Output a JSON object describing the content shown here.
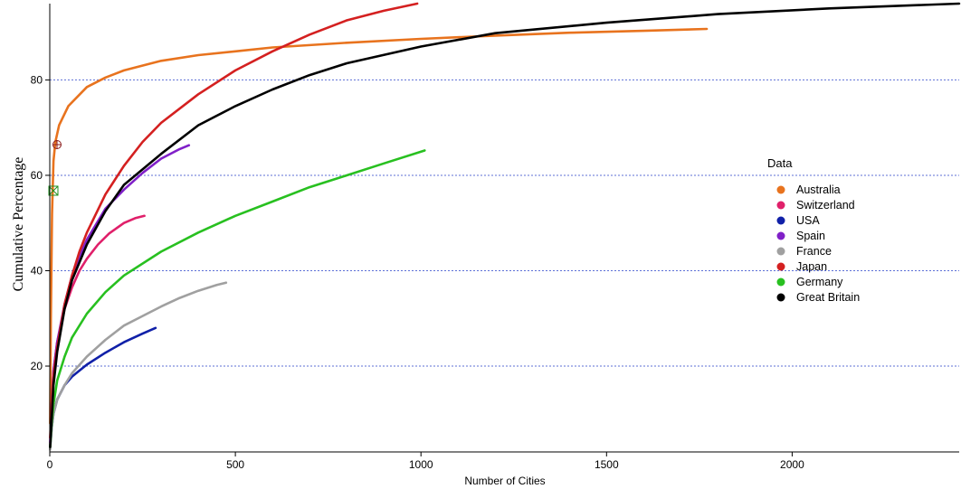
{
  "chart_data": {
    "type": "line",
    "xlabel": "Number of Cities",
    "ylabel": "Cumulative Percentage",
    "xlim": [
      0,
      2450
    ],
    "ylim": [
      2,
      96
    ],
    "x_ticks": [
      0,
      500,
      1000,
      1500,
      2000
    ],
    "y_ticks": [
      20,
      40,
      60,
      80
    ],
    "grid": "horizontal dotted",
    "legend": {
      "title": "Data",
      "placement": "right"
    },
    "series": [
      {
        "name": "Australia",
        "color": "#e8731e",
        "points": [
          [
            1,
            8
          ],
          [
            3,
            30
          ],
          [
            6,
            52
          ],
          [
            10,
            63
          ],
          [
            15,
            67
          ],
          [
            25,
            70.5
          ],
          [
            50,
            74.5
          ],
          [
            100,
            78.5
          ],
          [
            150,
            80.5
          ],
          [
            200,
            82
          ],
          [
            300,
            84
          ],
          [
            400,
            85.2
          ],
          [
            500,
            86
          ],
          [
            600,
            86.8
          ],
          [
            800,
            87.8
          ],
          [
            1000,
            88.6
          ],
          [
            1200,
            89.3
          ],
          [
            1400,
            89.9
          ],
          [
            1600,
            90.3
          ],
          [
            1770,
            90.7
          ]
        ]
      },
      {
        "name": "Switzerland",
        "color": "#e0206a",
        "points": [
          [
            1,
            3
          ],
          [
            5,
            12
          ],
          [
            10,
            19
          ],
          [
            20,
            25
          ],
          [
            40,
            32
          ],
          [
            60,
            36.5
          ],
          [
            80,
            40
          ],
          [
            100,
            42.5
          ],
          [
            130,
            45.5
          ],
          [
            160,
            47.8
          ],
          [
            200,
            50
          ],
          [
            230,
            51
          ],
          [
            255,
            51.5
          ]
        ]
      },
      {
        "name": "USA",
        "color": "#1020a8",
        "points": [
          [
            1,
            3
          ],
          [
            5,
            7
          ],
          [
            10,
            10
          ],
          [
            20,
            13
          ],
          [
            40,
            16
          ],
          [
            60,
            17.8
          ],
          [
            100,
            20.3
          ],
          [
            150,
            22.8
          ],
          [
            200,
            25
          ],
          [
            250,
            26.8
          ],
          [
            285,
            28
          ]
        ]
      },
      {
        "name": "Spain",
        "color": "#8020c8",
        "points": [
          [
            1,
            4
          ],
          [
            5,
            12
          ],
          [
            10,
            19
          ],
          [
            20,
            25
          ],
          [
            40,
            33
          ],
          [
            60,
            39
          ],
          [
            80,
            43
          ],
          [
            100,
            46.5
          ],
          [
            150,
            53
          ],
          [
            200,
            57
          ],
          [
            250,
            60.5
          ],
          [
            300,
            63.5
          ],
          [
            350,
            65.5
          ],
          [
            375,
            66.3
          ]
        ]
      },
      {
        "name": "France",
        "color": "#a0a0a0",
        "points": [
          [
            1,
            2.5
          ],
          [
            5,
            7
          ],
          [
            10,
            10
          ],
          [
            20,
            13
          ],
          [
            40,
            16
          ],
          [
            60,
            18.5
          ],
          [
            100,
            22
          ],
          [
            150,
            25.5
          ],
          [
            200,
            28.5
          ],
          [
            250,
            30.5
          ],
          [
            300,
            32.5
          ],
          [
            350,
            34.3
          ],
          [
            400,
            35.8
          ],
          [
            450,
            37
          ],
          [
            475,
            37.5
          ]
        ]
      },
      {
        "name": "Japan",
        "color": "#d42020",
        "points": [
          [
            1,
            5
          ],
          [
            5,
            12
          ],
          [
            10,
            18
          ],
          [
            20,
            24
          ],
          [
            40,
            33
          ],
          [
            60,
            39
          ],
          [
            80,
            44
          ],
          [
            100,
            48
          ],
          [
            150,
            56
          ],
          [
            200,
            62
          ],
          [
            250,
            67
          ],
          [
            300,
            71
          ],
          [
            400,
            77
          ],
          [
            500,
            82
          ],
          [
            600,
            86
          ],
          [
            700,
            89.5
          ],
          [
            800,
            92.5
          ],
          [
            900,
            94.5
          ],
          [
            990,
            96
          ]
        ]
      },
      {
        "name": "Germany",
        "color": "#28c020",
        "points": [
          [
            1,
            3
          ],
          [
            5,
            8
          ],
          [
            10,
            12
          ],
          [
            20,
            17
          ],
          [
            40,
            22
          ],
          [
            60,
            26
          ],
          [
            100,
            31
          ],
          [
            150,
            35.5
          ],
          [
            200,
            39
          ],
          [
            300,
            44
          ],
          [
            400,
            48
          ],
          [
            500,
            51.5
          ],
          [
            600,
            54.5
          ],
          [
            700,
            57.5
          ],
          [
            800,
            60
          ],
          [
            900,
            62.5
          ],
          [
            1010,
            65.2
          ]
        ]
      },
      {
        "name": "Great Britain",
        "color": "#000000",
        "points": [
          [
            1,
            3
          ],
          [
            5,
            9
          ],
          [
            10,
            16
          ],
          [
            20,
            23
          ],
          [
            40,
            32
          ],
          [
            60,
            38
          ],
          [
            100,
            45.5
          ],
          [
            150,
            52.5
          ],
          [
            200,
            58
          ],
          [
            300,
            64.5
          ],
          [
            400,
            70.5
          ],
          [
            500,
            74.5
          ],
          [
            600,
            78
          ],
          [
            700,
            81
          ],
          [
            800,
            83.5
          ],
          [
            1000,
            87
          ],
          [
            1200,
            89.8
          ],
          [
            1500,
            92
          ],
          [
            1800,
            93.8
          ],
          [
            2100,
            95
          ],
          [
            2450,
            96
          ]
        ]
      }
    ]
  }
}
